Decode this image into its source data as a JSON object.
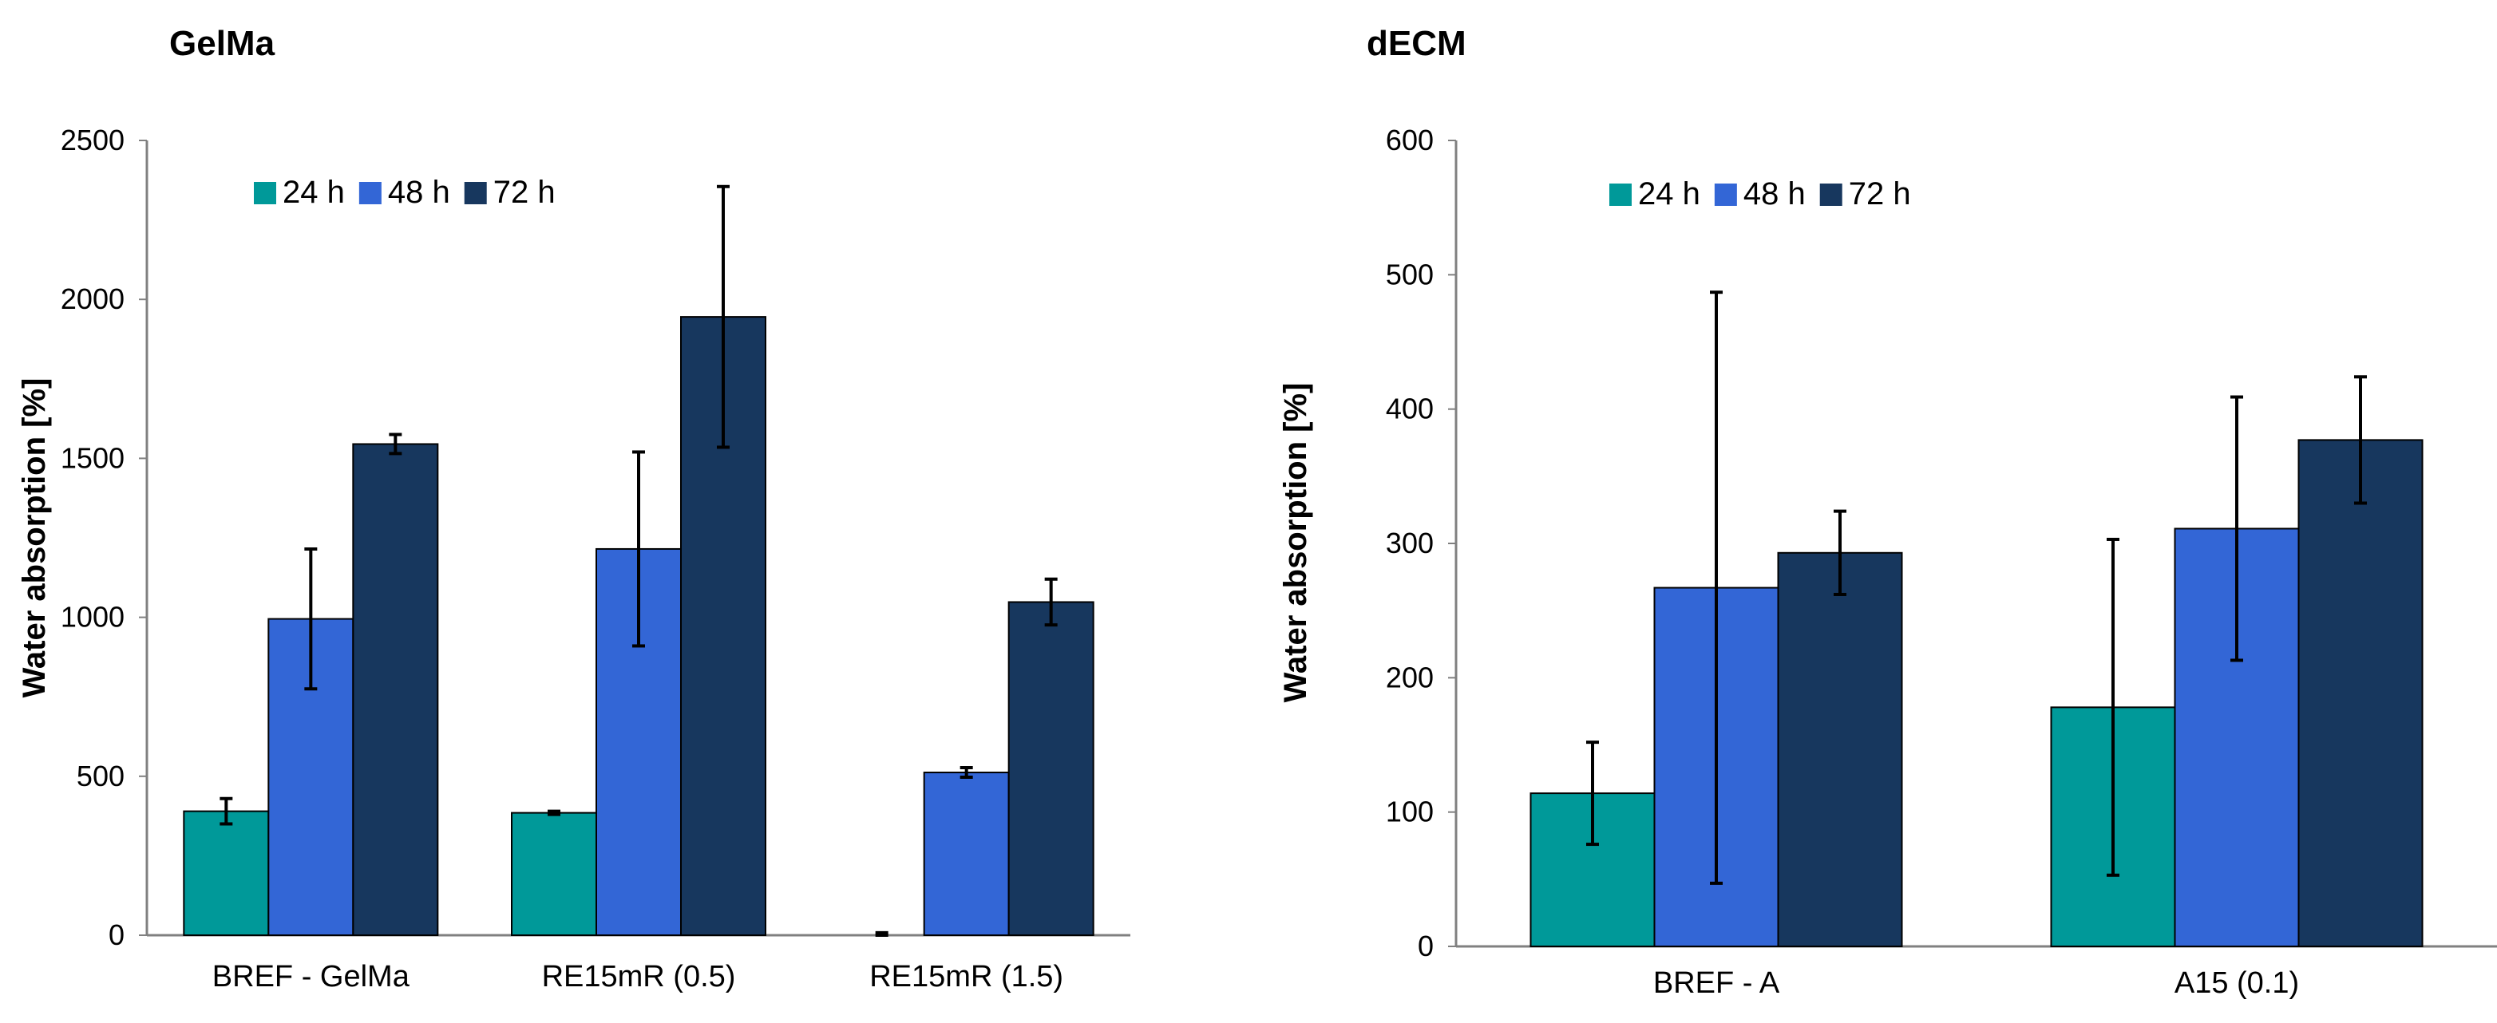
{
  "colors": {
    "h24": "#009999",
    "h48": "#3366D6",
    "h72": "#17375E",
    "axis": "#808080",
    "err": "#000000"
  },
  "chart_data": [
    {
      "type": "bar",
      "title": "GelMa",
      "xlabel": "",
      "ylabel": "Water absorption [%]",
      "ylim": [
        0,
        2500
      ],
      "yticks": [
        "0",
        "500",
        "1000",
        "1500",
        "2000",
        "2500"
      ],
      "ytick_values": [
        0,
        500,
        1000,
        1500,
        2000,
        2500
      ],
      "categories": [
        "BREF - GelMa",
        "RE15mR (0.5)",
        "RE15mR (1.5)"
      ],
      "legend": [
        "24 h",
        "48 h",
        "72 h"
      ],
      "legend_position": "top-left",
      "series": [
        {
          "name": "24 h",
          "values": [
            390,
            385,
            0
          ],
          "errors": [
            40,
            5,
            8
          ]
        },
        {
          "name": "48 h",
          "values": [
            995,
            1215,
            512
          ],
          "errors": [
            220,
            305,
            15
          ]
        },
        {
          "name": "72 h",
          "values": [
            1545,
            1945,
            1048
          ],
          "errors": [
            30,
            410,
            72
          ]
        }
      ]
    },
    {
      "type": "bar",
      "title": "dECM",
      "xlabel": "",
      "ylabel": "Water absorption [%]",
      "ylim": [
        0,
        600
      ],
      "yticks": [
        "0",
        "100",
        "200",
        "300",
        "400",
        "500",
        "600"
      ],
      "ytick_values": [
        0,
        100,
        200,
        300,
        400,
        500,
        600
      ],
      "categories": [
        "BREF - A",
        "A15 (0.1)"
      ],
      "legend": [
        "24 h",
        "48 h",
        "72 h"
      ],
      "legend_position": "top-left",
      "series": [
        {
          "name": "24 h",
          "values": [
            114,
            178
          ],
          "errors": [
            38,
            125
          ]
        },
        {
          "name": "48 h",
          "values": [
            267,
            311
          ],
          "errors": [
            220,
            98
          ]
        },
        {
          "name": "72 h",
          "values": [
            293,
            377
          ],
          "errors": [
            31,
            47
          ]
        }
      ]
    }
  ]
}
